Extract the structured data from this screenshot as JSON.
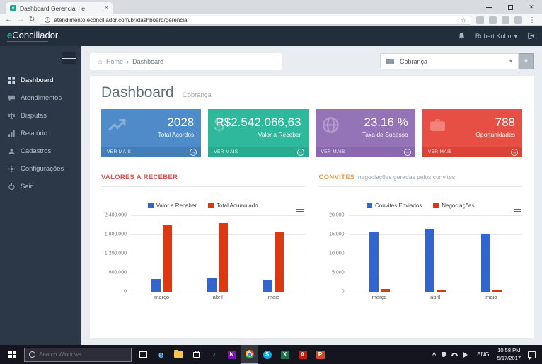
{
  "browser": {
    "tab_title": "Dashboard Gerencial | e",
    "url": "atendimento.econciliador.com.br/dashboard/gerencial"
  },
  "app": {
    "logo_prefix": "e",
    "logo": "Conciliador",
    "user": "Robert Kohn"
  },
  "sidebar": {
    "items": [
      "Dashboard",
      "Atendimentos",
      "Disputas",
      "Relatório",
      "Cadastros",
      "Configurações",
      "Sair"
    ]
  },
  "breadcrumb": {
    "home": "Home",
    "sep": "›",
    "current": "Dashboard"
  },
  "filter": {
    "value": "Cobrança"
  },
  "page": {
    "title": "Dashboard",
    "subtitle": "Cobrança"
  },
  "stats": [
    {
      "value": "2028",
      "label": "Total Acordos",
      "more": "VER MAIS",
      "color": "#4e8bc8",
      "footer_color": "#437eb9"
    },
    {
      "value": "R$2.542.066,63",
      "label": "Valor a Receber",
      "more": "VER MAIS",
      "color": "#2fb99c",
      "footer_color": "#29ab90"
    },
    {
      "value": "23.16 %",
      "label": "Taxa de Sucesso",
      "more": "VER MAIS",
      "color": "#9473b7",
      "footer_color": "#8a68ad"
    },
    {
      "value": "788",
      "label": "Oportunidades",
      "more": "VER MAIS",
      "color": "#e84f44",
      "footer_color": "#db4238"
    }
  ],
  "sections": [
    {
      "title": "VALORES A RECEBER",
      "subtitle": "",
      "color": "#d9534f"
    },
    {
      "title": "CONVITES",
      "subtitle": "negociações geradas pelos convites",
      "color": "#eb9c4d"
    }
  ],
  "chart_data": [
    {
      "type": "bar",
      "title": "VALORES A RECEBER",
      "categories": [
        "março",
        "abril",
        "maio"
      ],
      "series": [
        {
          "name": "Valor a Receber",
          "color": "#3366cc",
          "values": [
            400000,
            420000,
            380000
          ]
        },
        {
          "name": "Total Acumulado",
          "color": "#dc3912",
          "values": [
            2100000,
            2150000,
            1870000
          ]
        }
      ],
      "ylim": [
        0,
        2400000
      ],
      "yticks": [
        "2.400.000",
        "1.800.000",
        "1.200.000",
        "600.000",
        "0"
      ],
      "grid": true,
      "legend_position": "top"
    },
    {
      "type": "bar",
      "title": "CONVITES",
      "categories": [
        "março",
        "abril",
        "maio"
      ],
      "series": [
        {
          "name": "Convites Enviados",
          "color": "#3366cc",
          "values": [
            15500,
            16400,
            15100
          ]
        },
        {
          "name": "Negociações",
          "color": "#dc3912",
          "values": [
            700,
            400,
            300
          ]
        }
      ],
      "ylim": [
        0,
        20000
      ],
      "yticks": [
        "20.000",
        "15.000",
        "10.000",
        "5.000",
        "0"
      ],
      "grid": true,
      "legend_position": "top"
    }
  ],
  "taskbar": {
    "search_placeholder": "Search Windows",
    "lang": "ENG",
    "time": "10:58 PM",
    "date": "5/17/2017"
  }
}
